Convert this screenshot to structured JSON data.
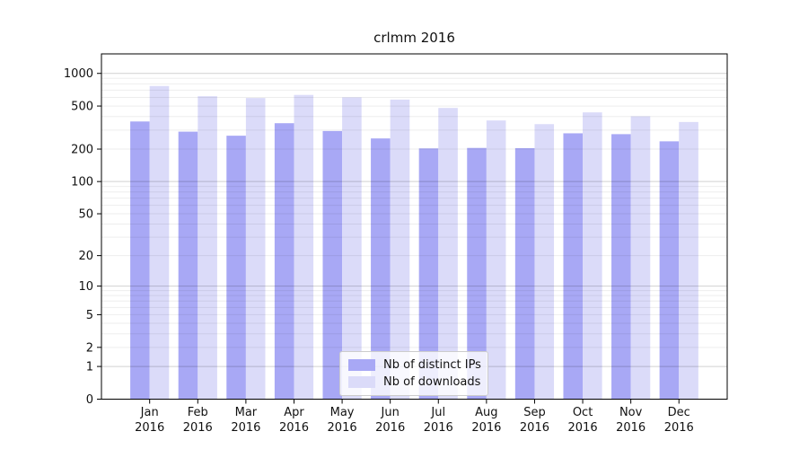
{
  "chart_data": {
    "type": "bar",
    "title": "crlmm 2016",
    "categories": [
      "Jan 2016",
      "Feb 2016",
      "Mar 2016",
      "Apr 2016",
      "May 2016",
      "Jun 2016",
      "Jul 2016",
      "Aug 2016",
      "Sep 2016",
      "Oct 2016",
      "Nov 2016",
      "Dec 2016"
    ],
    "series": [
      {
        "name": "Nb of distinct IPs",
        "color": "#a8a8f5",
        "values": [
          360,
          290,
          266,
          347,
          294,
          251,
          203,
          205,
          204,
          280,
          275,
          236
        ]
      },
      {
        "name": "Nb of downloads",
        "color": "#dbdbf9",
        "values": [
          765,
          616,
          593,
          633,
          601,
          573,
          480,
          368,
          340,
          437,
          402,
          356
        ]
      }
    ],
    "yscale": "log1p",
    "yticks": [
      0,
      1,
      2,
      5,
      10,
      20,
      50,
      100,
      200,
      500,
      1000
    ],
    "ylim": [
      0,
      1513
    ],
    "xlabel": "",
    "ylabel": "",
    "grid": "horizontal minor+major, on",
    "legend_position": "lower center",
    "colors": {
      "background": "#ffffff",
      "spine": "#000000",
      "grid_major": "rgba(0,0,0,0.18)",
      "grid_minor": "rgba(0,0,0,0.07)",
      "text": "#111111"
    }
  }
}
